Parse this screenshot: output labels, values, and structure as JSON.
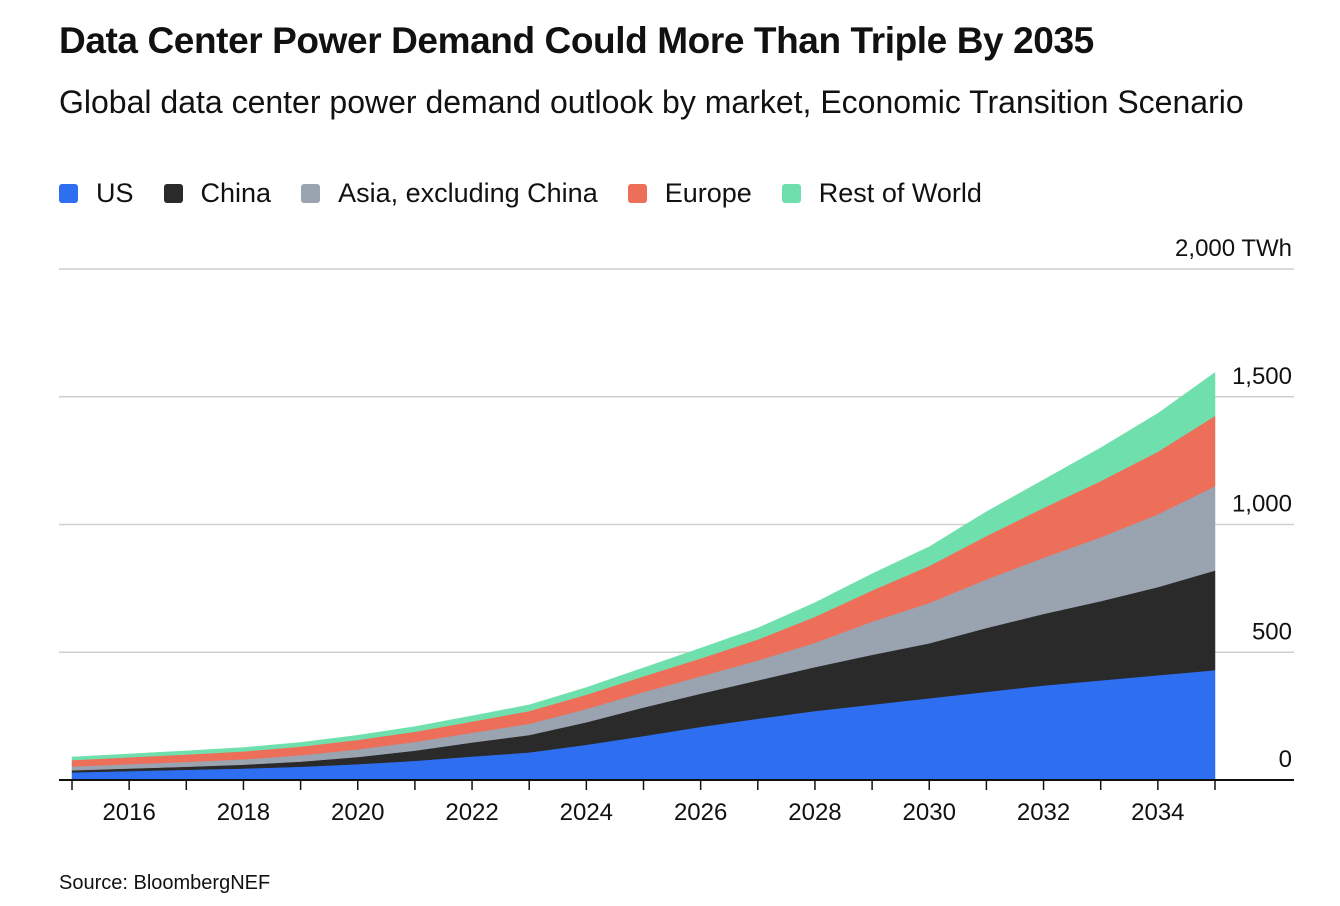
{
  "title": "Data Center Power Demand Could More Than Triple By 2035",
  "subtitle": "Global data center power demand outlook by market, Economic Transition Scenario",
  "source": "Source: BloombergNEF",
  "chart_data": {
    "type": "area",
    "stacked": true,
    "x": [
      2015,
      2016,
      2017,
      2018,
      2019,
      2020,
      2021,
      2022,
      2023,
      2024,
      2025,
      2026,
      2027,
      2028,
      2029,
      2030,
      2031,
      2032,
      2033,
      2034,
      2035
    ],
    "series": [
      {
        "name": "US",
        "color": "#2e6ff2",
        "values": [
          30,
          35,
          40,
          45,
          52,
          62,
          75,
          92,
          108,
          138,
          172,
          208,
          240,
          270,
          295,
          320,
          345,
          370,
          390,
          410,
          430
        ]
      },
      {
        "name": "China",
        "color": "#2a2a2a",
        "values": [
          8,
          10,
          12,
          15,
          20,
          28,
          40,
          55,
          68,
          88,
          112,
          130,
          150,
          172,
          195,
          215,
          250,
          280,
          310,
          345,
          390
        ]
      },
      {
        "name": "Asia, excluding China",
        "color": "#9aa3b0",
        "values": [
          15,
          17,
          19,
          21,
          25,
          30,
          34,
          38,
          44,
          52,
          60,
          68,
          78,
          95,
          130,
          158,
          190,
          220,
          250,
          285,
          330
        ]
      },
      {
        "name": "Europe",
        "color": "#ed6f59",
        "values": [
          25,
          27,
          29,
          31,
          34,
          37,
          40,
          44,
          50,
          56,
          62,
          70,
          82,
          102,
          122,
          145,
          170,
          195,
          220,
          245,
          275
        ]
      },
      {
        "name": "Rest of World",
        "color": "#6fe0ad",
        "values": [
          12,
          13,
          14,
          15,
          16,
          18,
          20,
          22,
          24,
          28,
          33,
          40,
          45,
          55,
          65,
          75,
          95,
          110,
          130,
          150,
          170
        ]
      }
    ],
    "ylim": [
      0,
      2000
    ],
    "yticks": [
      {
        "value": 2000,
        "label": "2,000 TWh"
      },
      {
        "value": 1500,
        "label": "1,500"
      },
      {
        "value": 1000,
        "label": "1,000"
      },
      {
        "value": 500,
        "label": "500"
      },
      {
        "value": 0,
        "label": "0"
      }
    ],
    "xtick_labels": [
      "2016",
      "2018",
      "2020",
      "2022",
      "2024",
      "2026",
      "2028",
      "2030",
      "2032",
      "2034"
    ],
    "grid": true,
    "legend_position": "top-left",
    "ylabel": "",
    "xlabel": ""
  }
}
